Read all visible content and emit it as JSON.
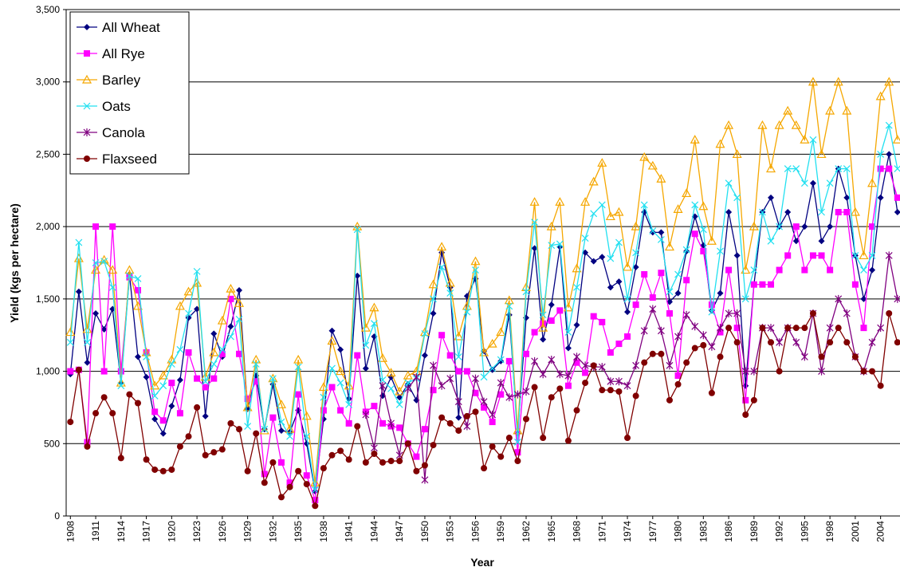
{
  "chart_data": {
    "type": "line",
    "x_label": "Year",
    "y_label": "Yield (kgs per hectare)",
    "x": [
      1908,
      1909,
      1910,
      1911,
      1912,
      1913,
      1914,
      1915,
      1916,
      1917,
      1918,
      1919,
      1920,
      1921,
      1922,
      1923,
      1924,
      1925,
      1926,
      1927,
      1928,
      1929,
      1930,
      1931,
      1932,
      1933,
      1934,
      1935,
      1936,
      1937,
      1938,
      1939,
      1940,
      1941,
      1942,
      1943,
      1944,
      1945,
      1946,
      1947,
      1948,
      1949,
      1950,
      1951,
      1952,
      1953,
      1954,
      1955,
      1956,
      1957,
      1958,
      1959,
      1960,
      1961,
      1962,
      1963,
      1964,
      1965,
      1966,
      1967,
      1968,
      1969,
      1970,
      1971,
      1972,
      1973,
      1974,
      1975,
      1976,
      1977,
      1978,
      1979,
      1980,
      1981,
      1982,
      1983,
      1984,
      1985,
      1986,
      1987,
      1988,
      1989,
      1990,
      1991,
      1992,
      1993,
      1994,
      1995,
      1996,
      1997,
      1998,
      1999,
      2000,
      2001,
      2002,
      2003,
      2004,
      2005,
      2006
    ],
    "xlim": [
      1907.5,
      2006.3
    ],
    "xticks": [
      1908,
      1911,
      1914,
      1917,
      1920,
      1923,
      1926,
      1929,
      1932,
      1935,
      1938,
      1941,
      1944,
      1947,
      1950,
      1953,
      1956,
      1959,
      1962,
      1965,
      1968,
      1971,
      1974,
      1977,
      1980,
      1983,
      1986,
      1989,
      1992,
      1995,
      1998,
      2001,
      2004
    ],
    "ylim": [
      0,
      3500
    ],
    "yticks": [
      0,
      500,
      {
        "value": 1000,
        "label": "1,000"
      },
      {
        "value": 1500,
        "label": "1,500"
      },
      {
        "value": 2000,
        "label": "2,000"
      },
      {
        "value": 2500,
        "label": "2,500"
      },
      {
        "value": 3000,
        "label": "3,000"
      },
      {
        "value": 3500,
        "label": "3,500"
      }
    ],
    "grid": true,
    "legend": "top-left",
    "series": [
      {
        "name": "All Wheat",
        "color": "#000080",
        "marker": "diamond",
        "values": [
          980,
          1550,
          1060,
          1400,
          1290,
          1430,
          920,
          1670,
          1100,
          960,
          670,
          570,
          760,
          940,
          1370,
          1430,
          690,
          1260,
          1100,
          1310,
          1560,
          740,
          970,
          600,
          910,
          590,
          580,
          730,
          500,
          170,
          670,
          1280,
          1150,
          810,
          1660,
          1020,
          1240,
          830,
          960,
          820,
          910,
          800,
          1110,
          1400,
          1820,
          1580,
          680,
          1520,
          1640,
          1140,
          1010,
          1070,
          1390,
          570,
          1370,
          1850,
          1220,
          1460,
          1860,
          1160,
          1320,
          1820,
          1760,
          1790,
          1580,
          1620,
          1410,
          1720,
          2100,
          1960,
          1960,
          1480,
          1540,
          1830,
          2070,
          1870,
          1420,
          1540,
          2100,
          1800,
          900,
          1600,
          2100,
          2200,
          2000,
          2100,
          1900,
          2000,
          2300,
          1900,
          2000,
          2400,
          2200,
          1800,
          1500,
          1700,
          2200,
          2500,
          2100
        ]
      },
      {
        "name": "All Rye",
        "color": "#ff00ff",
        "marker": "square",
        "values": [
          1000,
          1010,
          510,
          2000,
          1000,
          2000,
          1000,
          1650,
          1560,
          1130,
          720,
          660,
          920,
          710,
          1130,
          950,
          890,
          950,
          1120,
          1500,
          1120,
          810,
          930,
          290,
          680,
          370,
          230,
          840,
          280,
          110,
          730,
          890,
          730,
          640,
          1110,
          720,
          760,
          640,
          620,
          610,
          500,
          410,
          600,
          870,
          1250,
          1110,
          1000,
          1000,
          850,
          750,
          650,
          840,
          1070,
          440,
          1120,
          1270,
          1330,
          1350,
          1420,
          900,
          1060,
          990,
          1380,
          1340,
          1130,
          1190,
          1240,
          1460,
          1670,
          1510,
          1680,
          1400,
          970,
          1630,
          1950,
          1830,
          1460,
          1270,
          1700,
          1300,
          800,
          1600,
          1600,
          1600,
          1700,
          1800,
          2000,
          1700,
          1800,
          1800,
          1700,
          2100,
          2100,
          1600,
          1300,
          2000,
          2400,
          2400,
          2200
        ]
      },
      {
        "name": "Barley",
        "color": "#f5a700",
        "marker": "triangle",
        "values": [
          1270,
          1780,
          1290,
          1700,
          1770,
          1700,
          920,
          1700,
          1450,
          1130,
          900,
          970,
          1080,
          1450,
          1550,
          1610,
          960,
          1130,
          1350,
          1570,
          1470,
          750,
          1080,
          590,
          950,
          770,
          600,
          1080,
          690,
          230,
          890,
          1210,
          1000,
          900,
          2000,
          1300,
          1440,
          1090,
          990,
          860,
          970,
          1000,
          1270,
          1600,
          1860,
          1610,
          1240,
          1450,
          1760,
          1130,
          1190,
          1270,
          1490,
          590,
          1580,
          2170,
          1300,
          2000,
          2170,
          1440,
          1710,
          2170,
          2310,
          2440,
          2070,
          2100,
          1720,
          2000,
          2480,
          2420,
          2330,
          1860,
          2120,
          2230,
          2600,
          2140,
          1900,
          2570,
          2700,
          2500,
          1700,
          2000,
          2700,
          2400,
          2700,
          2800,
          2700,
          2600,
          3000,
          2500,
          2800,
          3000,
          2800,
          2100,
          1800,
          2300,
          2900,
          3000,
          2600
        ]
      },
      {
        "name": "Oats",
        "color": "#22e0f0",
        "marker": "x",
        "values": [
          1200,
          1890,
          1200,
          1750,
          1760,
          1580,
          900,
          1660,
          1640,
          1100,
          830,
          900,
          1050,
          1150,
          1400,
          1690,
          930,
          1050,
          1150,
          1240,
          1360,
          620,
          1050,
          600,
          950,
          650,
          550,
          1030,
          550,
          180,
          820,
          1020,
          920,
          770,
          1980,
          1180,
          1330,
          940,
          880,
          770,
          920,
          950,
          1260,
          1500,
          1720,
          1540,
          1100,
          1410,
          1700,
          960,
          1020,
          1080,
          1450,
          510,
          1550,
          2030,
          1390,
          1870,
          1880,
          1270,
          1580,
          1920,
          2090,
          2150,
          1780,
          1890,
          1500,
          1820,
          2150,
          1970,
          1910,
          1550,
          1670,
          1840,
          2150,
          1980,
          1410,
          1830,
          2300,
          2200,
          1500,
          1700,
          2100,
          1900,
          2000,
          2400,
          2400,
          2300,
          2600,
          2100,
          2300,
          2400,
          2400,
          1800,
          1700,
          1800,
          2500,
          2700,
          2400
        ]
      },
      {
        "name": "Canola",
        "color": "#800080",
        "marker": "star",
        "values": [
          null,
          null,
          null,
          null,
          null,
          null,
          null,
          null,
          null,
          null,
          null,
          null,
          null,
          null,
          null,
          null,
          null,
          null,
          null,
          null,
          null,
          null,
          null,
          null,
          null,
          null,
          null,
          null,
          null,
          null,
          null,
          null,
          null,
          null,
          null,
          700,
          470,
          900,
          640,
          420,
          880,
          960,
          250,
          1040,
          900,
          950,
          790,
          620,
          950,
          790,
          700,
          920,
          820,
          840,
          860,
          1070,
          980,
          1080,
          980,
          970,
          1100,
          1040,
          1030,
          1030,
          930,
          930,
          900,
          1040,
          1280,
          1430,
          1280,
          1040,
          1240,
          1390,
          1310,
          1250,
          1170,
          1300,
          1400,
          1400,
          1000,
          1000,
          1300,
          1300,
          1200,
          1300,
          1200,
          1100,
          1400,
          1000,
          1300,
          1500,
          1400,
          1100,
          1000,
          1200,
          1300,
          1800,
          1500
        ]
      },
      {
        "name": "Flaxseed",
        "color": "#800000",
        "marker": "circle",
        "values": [
          650,
          1010,
          480,
          710,
          820,
          710,
          400,
          840,
          780,
          390,
          320,
          310,
          320,
          480,
          550,
          750,
          420,
          440,
          460,
          640,
          600,
          310,
          570,
          230,
          370,
          130,
          200,
          310,
          220,
          70,
          330,
          420,
          450,
          390,
          620,
          370,
          430,
          370,
          380,
          380,
          500,
          310,
          350,
          490,
          680,
          640,
          590,
          690,
          720,
          330,
          480,
          410,
          540,
          380,
          670,
          890,
          540,
          820,
          880,
          520,
          730,
          920,
          1040,
          870,
          870,
          860,
          540,
          830,
          1060,
          1120,
          1120,
          800,
          910,
          1060,
          1160,
          1180,
          850,
          1100,
          1300,
          1200,
          700,
          800,
          1300,
          1200,
          1000,
          1300,
          1300,
          1300,
          1400,
          1100,
          1200,
          1300,
          1200,
          1100,
          1000,
          1000,
          900,
          1400,
          1200
        ]
      }
    ]
  }
}
